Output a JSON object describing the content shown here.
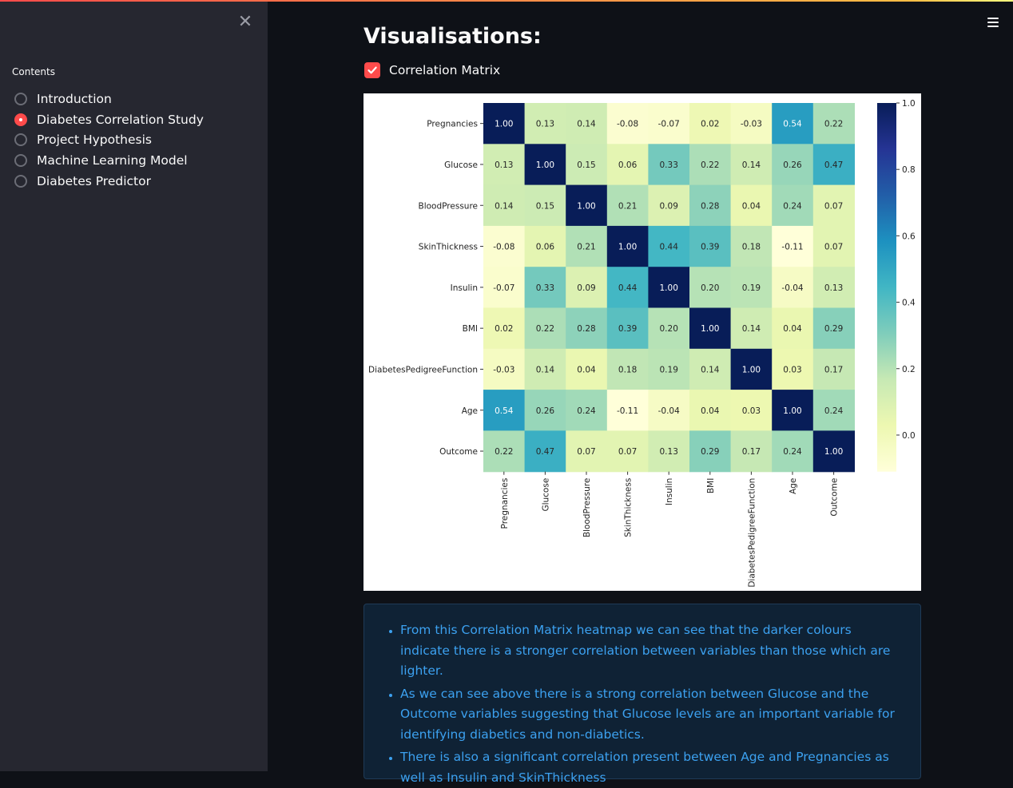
{
  "sidebar": {
    "contents_title": "Contents",
    "items": [
      {
        "label": "Introduction",
        "selected": false
      },
      {
        "label": "Diabetes Correlation Study",
        "selected": true
      },
      {
        "label": "Project Hypothesis",
        "selected": false
      },
      {
        "label": "Machine Learning Model",
        "selected": false
      },
      {
        "label": "Diabetes Predictor",
        "selected": false
      }
    ]
  },
  "main": {
    "title": "Visualisations:",
    "checkbox": {
      "label": "Correlation Matrix",
      "checked": true
    }
  },
  "colors": {
    "accent": "#ff4b4b",
    "sidebar_bg": "#262730",
    "main_bg": "#0e1117",
    "info_text": "#3ca1f0",
    "info_bg": "#0f2235"
  },
  "chart_data": {
    "type": "heatmap",
    "colormap": "YlGnBu",
    "labels": [
      "Pregnancies",
      "Glucose",
      "BloodPressure",
      "SkinThickness",
      "Insulin",
      "BMI",
      "DiabetesPedigreeFunction",
      "Age",
      "Outcome"
    ],
    "matrix": [
      [
        1.0,
        0.13,
        0.14,
        -0.08,
        -0.07,
        0.02,
        -0.03,
        0.54,
        0.22
      ],
      [
        0.13,
        1.0,
        0.15,
        0.06,
        0.33,
        0.22,
        0.14,
        0.26,
        0.47
      ],
      [
        0.14,
        0.15,
        1.0,
        0.21,
        0.09,
        0.28,
        0.04,
        0.24,
        0.07
      ],
      [
        -0.08,
        0.06,
        0.21,
        1.0,
        0.44,
        0.39,
        0.18,
        -0.11,
        0.07
      ],
      [
        -0.07,
        0.33,
        0.09,
        0.44,
        1.0,
        0.2,
        0.19,
        -0.04,
        0.13
      ],
      [
        0.02,
        0.22,
        0.28,
        0.39,
        0.2,
        1.0,
        0.14,
        0.04,
        0.29
      ],
      [
        -0.03,
        0.14,
        0.04,
        0.18,
        0.19,
        0.14,
        1.0,
        0.03,
        0.17
      ],
      [
        0.54,
        0.26,
        0.24,
        -0.11,
        -0.04,
        0.04,
        0.03,
        1.0,
        0.24
      ],
      [
        0.22,
        0.47,
        0.07,
        0.07,
        0.13,
        0.29,
        0.17,
        0.24,
        1.0
      ]
    ],
    "colorbar": {
      "range": [
        -0.11,
        1.0
      ],
      "ticks": [
        "1.0",
        "0.8",
        "0.6",
        "0.4",
        "0.2",
        "0.0"
      ],
      "tick_values": [
        1.0,
        0.8,
        0.6,
        0.4,
        0.2,
        0.0
      ]
    }
  },
  "info": {
    "bullets": [
      "From this Correlation Matrix heatmap we can see that the darker colours indicate there is a stronger correlation between variables than those which are lighter.",
      "As we can see above there is a strong correlation between Glucose and the Outcome variables suggesting that Glucose levels are an important variable for identifying diabetics and non-diabetics.",
      "There is also a significant correlation present between Age and Pregnancies as well as Insulin and SkinThickness"
    ]
  }
}
